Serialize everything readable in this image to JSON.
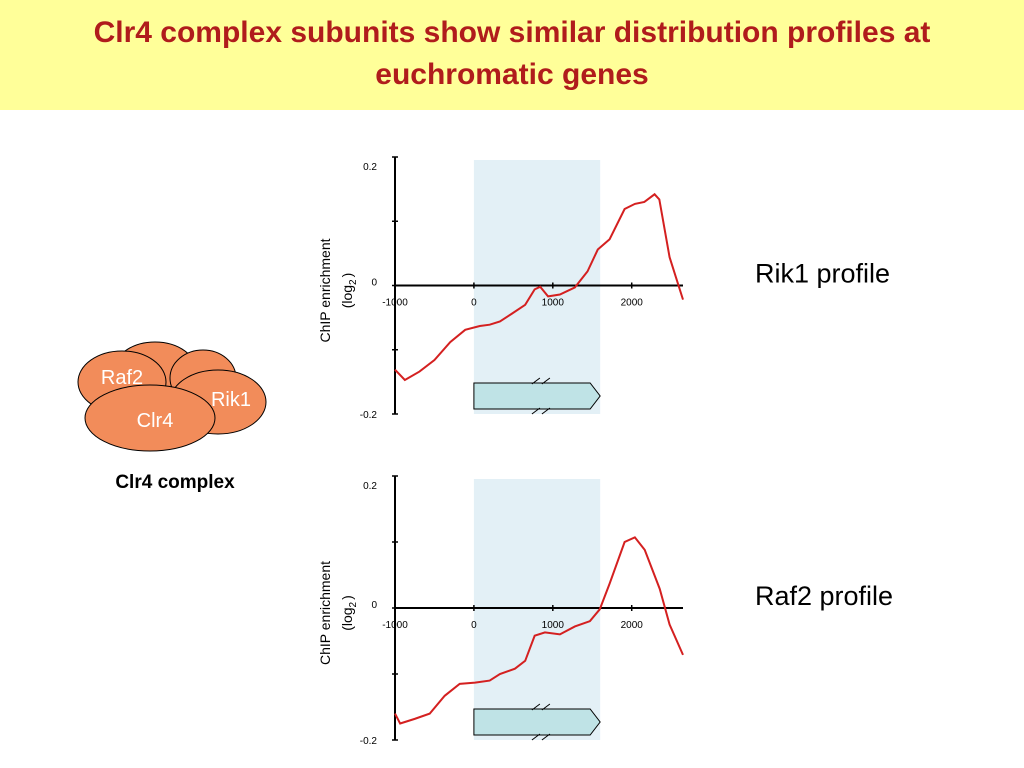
{
  "title": "Clr4 complex subunits show similar distribution profiles at euchromatic genes",
  "complex": {
    "subunits": [
      "Raf2",
      "Rik1",
      "Clr4"
    ],
    "label": "Clr4 complex"
  },
  "chart_data": [
    {
      "type": "line",
      "label": "Rik1 profile",
      "ylabel": "ChIP enrichment",
      "ylabel_unit": {
        "open": "(log",
        "sub": "2",
        "close": ")"
      },
      "xlim": [
        -1000,
        2650
      ],
      "xticks": [
        -1000,
        0,
        1000,
        2000
      ],
      "ylim": [
        -0.2,
        0.2
      ],
      "yticks": [
        -0.2,
        0,
        0.2
      ],
      "minor_yticks": [
        -0.1,
        0.1
      ],
      "highlight": [
        0,
        1600
      ],
      "color": "#d42020",
      "x": [
        -1000,
        -875,
        -690,
        -500,
        -300,
        -110,
        75,
        200,
        330,
        480,
        650,
        770,
        840,
        940,
        1090,
        1280,
        1440,
        1570,
        1720,
        1910,
        2040,
        2160,
        2290,
        2350,
        2480,
        2650
      ],
      "values": [
        -0.131,
        -0.147,
        -0.134,
        -0.116,
        -0.088,
        -0.069,
        -0.063,
        -0.061,
        -0.056,
        -0.044,
        -0.03,
        -0.006,
        -0.002,
        -0.017,
        -0.014,
        -0.003,
        0.022,
        0.056,
        0.072,
        0.119,
        0.127,
        0.13,
        0.142,
        0.134,
        0.044,
        -0.022
      ]
    },
    {
      "type": "line",
      "label": "Raf2 profile",
      "ylabel": "ChIP enrichment",
      "ylabel_unit": {
        "open": "(log",
        "sub": "2",
        "close": ")"
      },
      "xlim": [
        -1000,
        2650
      ],
      "xticks": [
        -1000,
        0,
        1000,
        2000
      ],
      "ylim": [
        -0.2,
        0.2
      ],
      "yticks": [
        -0.2,
        0,
        0.2
      ],
      "minor_yticks": [
        -0.1,
        0.1
      ],
      "highlight": [
        0,
        1600
      ],
      "color": "#d42020",
      "x": [
        -1000,
        -935,
        -750,
        -560,
        -370,
        -180,
        15,
        200,
        330,
        520,
        650,
        770,
        900,
        1090,
        1280,
        1470,
        1595,
        1720,
        1910,
        2040,
        2165,
        2355,
        2480,
        2650
      ],
      "values": [
        -0.16,
        -0.175,
        -0.168,
        -0.16,
        -0.133,
        -0.115,
        -0.113,
        -0.11,
        -0.1,
        -0.092,
        -0.08,
        -0.042,
        -0.037,
        -0.04,
        -0.028,
        -0.02,
        -0.002,
        0.037,
        0.1,
        0.107,
        0.088,
        0.029,
        -0.025,
        -0.071
      ]
    }
  ]
}
